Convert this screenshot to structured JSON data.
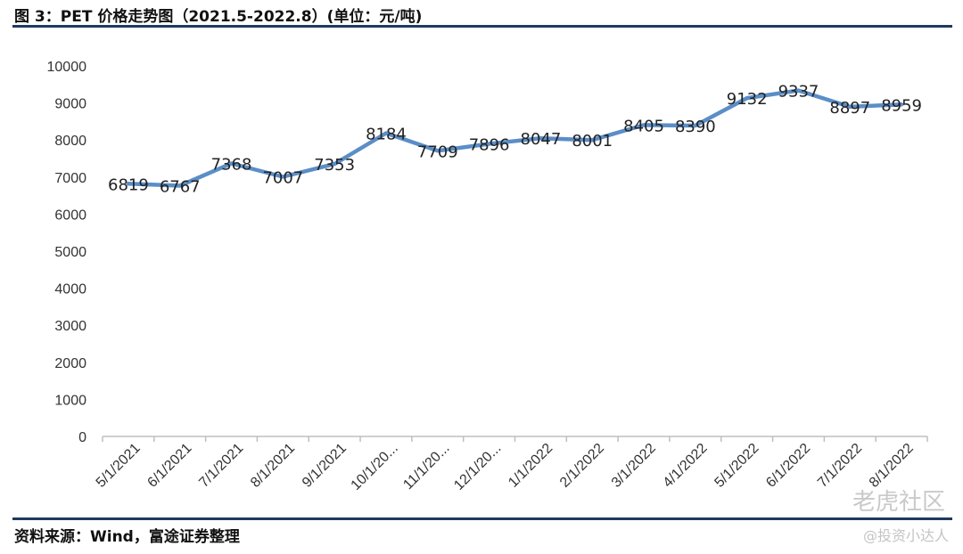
{
  "header": {
    "title": "图 3：PET 价格走势图（2021.5-2022.8）(单位：元/吨)"
  },
  "footer": {
    "source": "资料来源：Wind，富途证券整理"
  },
  "watermark": {
    "brand": "老虎社区",
    "handle": "@投资小达人"
  },
  "chart_data": {
    "type": "line",
    "categories": [
      "5/1/2021",
      "6/1/2021",
      "7/1/2021",
      "8/1/2021",
      "9/1/2021",
      "10/1/20...",
      "11/1/20...",
      "12/1/20...",
      "1/1/2022",
      "2/1/2022",
      "3/1/2022",
      "4/1/2022",
      "5/1/2022",
      "6/1/2022",
      "7/1/2022",
      "8/1/2022"
    ],
    "series": [
      {
        "values": [
          6819,
          6767,
          7368,
          7007,
          7353,
          8184,
          7709,
          7896,
          8047,
          8001,
          8405,
          8390,
          9132,
          9337,
          8897,
          8959
        ],
        "color": "#5b8ec7"
      }
    ],
    "data_labels": [
      "6819",
      "6767",
      "7368",
      "7007",
      "7353",
      "8184",
      "7709",
      "7896",
      "8047",
      "8001",
      "8405",
      "8390",
      "9132",
      "9337",
      "8897",
      "8959"
    ],
    "y_ticks": [
      "0",
      "1000",
      "2000",
      "3000",
      "4000",
      "5000",
      "6000",
      "7000",
      "8000",
      "9000",
      "10000"
    ],
    "ylim": [
      0,
      10000
    ],
    "grid": false,
    "legend": "none"
  }
}
